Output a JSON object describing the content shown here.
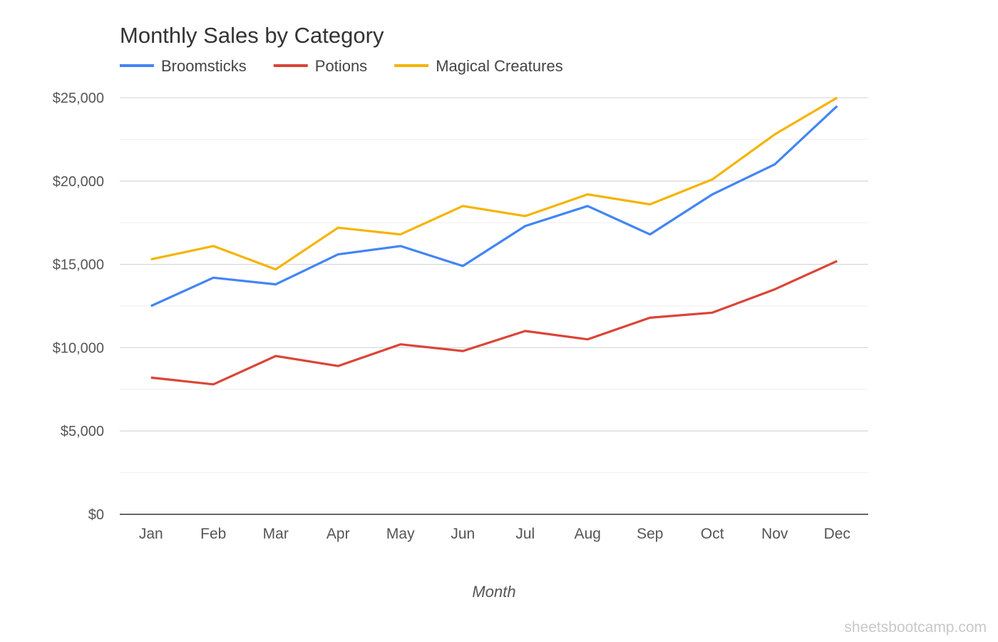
{
  "chart_data": {
    "type": "line",
    "title": "Monthly Sales by Category",
    "xlabel": "Month",
    "ylabel": "",
    "categories": [
      "Jan",
      "Feb",
      "Mar",
      "Apr",
      "May",
      "Jun",
      "Jul",
      "Aug",
      "Sep",
      "Oct",
      "Nov",
      "Dec"
    ],
    "ylim": [
      0,
      25000
    ],
    "y_ticks": [
      0,
      5000,
      10000,
      15000,
      20000,
      25000
    ],
    "y_tick_labels": [
      "$0",
      "$5,000",
      "$10,000",
      "$15,000",
      "$20,000",
      "$25,000"
    ],
    "grid": true,
    "legend_position": "top-left",
    "series": [
      {
        "name": "Broomsticks",
        "color": "#4285f4",
        "values": [
          12500,
          14200,
          13800,
          15600,
          16100,
          14900,
          17300,
          18500,
          16800,
          19200,
          21000,
          24500
        ]
      },
      {
        "name": "Potions",
        "color": "#db4437",
        "values": [
          8200,
          7800,
          9500,
          8900,
          10200,
          9800,
          11000,
          10500,
          11800,
          12100,
          13500,
          15200
        ]
      },
      {
        "name": "Magical Creatures",
        "color": "#f4b400",
        "values": [
          15300,
          16100,
          14700,
          17200,
          16800,
          18500,
          17900,
          19200,
          18600,
          20100,
          22800,
          25000
        ]
      }
    ]
  },
  "watermark": "sheetsbootcamp.com"
}
